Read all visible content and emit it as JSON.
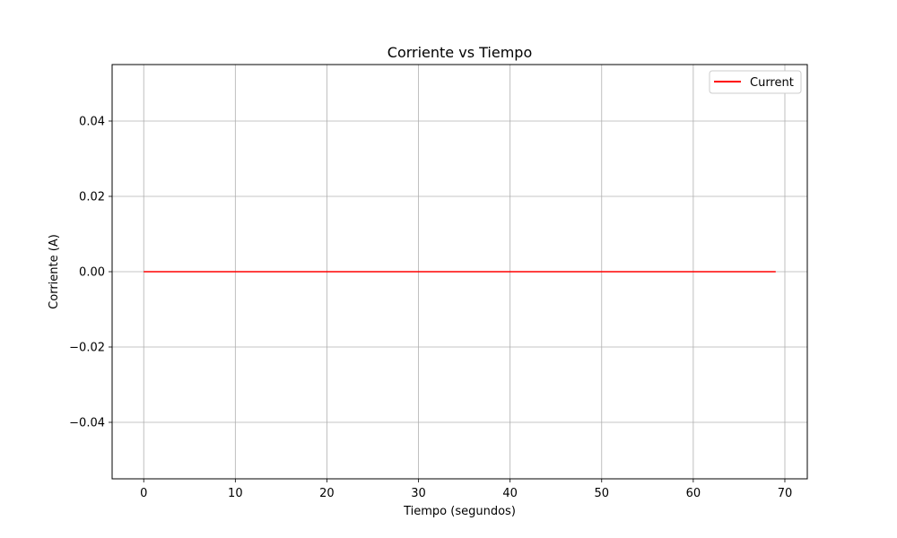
{
  "chart_data": {
    "type": "line",
    "title": "Corriente vs Tiempo",
    "xlabel": "Tiempo (segundos)",
    "ylabel": "Corriente (A)",
    "xlim": [
      -3.45,
      72.45
    ],
    "ylim": [
      -0.055,
      0.055
    ],
    "xticks": [
      0,
      10,
      20,
      30,
      40,
      50,
      60,
      70
    ],
    "xtick_labels": [
      "0",
      "10",
      "20",
      "30",
      "40",
      "50",
      "60",
      "70"
    ],
    "yticks": [
      -0.04,
      -0.02,
      0.0,
      0.02,
      0.04
    ],
    "ytick_labels": [
      "−0.04",
      "−0.02",
      "0.00",
      "0.02",
      "0.04"
    ],
    "grid": true,
    "legend_position": "top-right",
    "series": [
      {
        "name": "Current",
        "color": "#ff0000",
        "x": [
          0,
          69
        ],
        "y": [
          0.0,
          0.0
        ]
      }
    ]
  }
}
